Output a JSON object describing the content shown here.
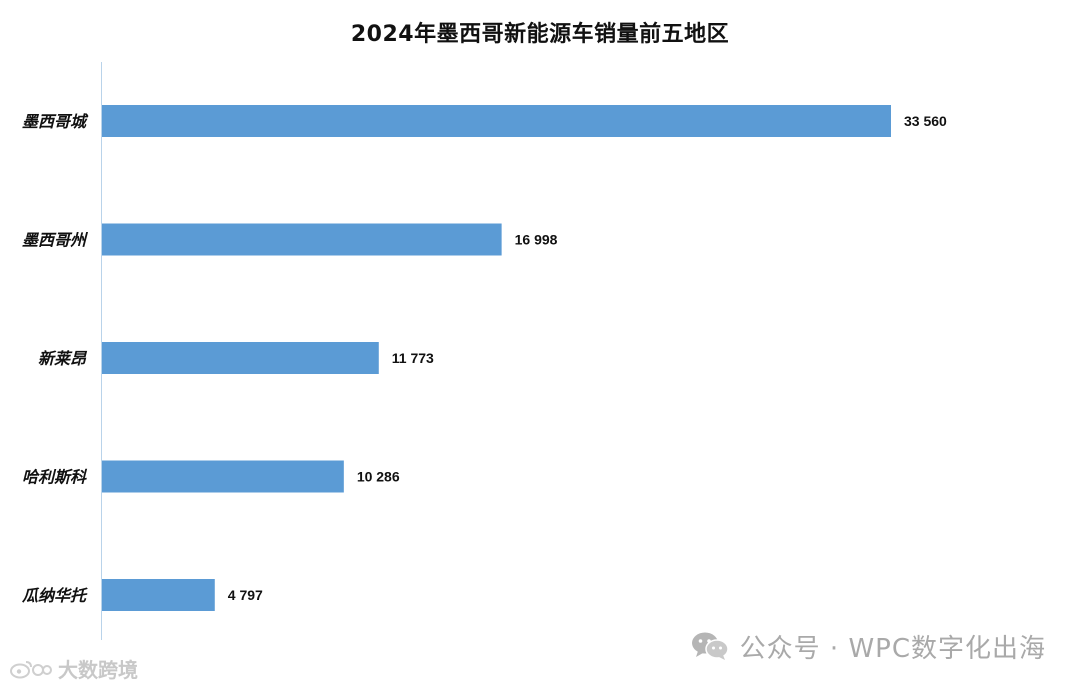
{
  "chart_data": {
    "type": "bar",
    "orientation": "horizontal",
    "title": "2024年墨西哥新能源车销量前五地区",
    "categories": [
      "墨西哥城",
      "墨西哥州",
      "新莱昂",
      "哈利斯科",
      "瓜纳华托"
    ],
    "values": [
      33560,
      16998,
      11773,
      10286,
      4797
    ],
    "value_labels": [
      "33 560",
      "16 998",
      "11 773",
      "10 286",
      "4 797"
    ],
    "xlabel": "",
    "ylabel": "",
    "xlim": [
      0,
      33560
    ],
    "grid": false,
    "legend": "none",
    "bar_color": "#5b9bd5"
  },
  "watermarks": {
    "right_text": "公众号 · WPC数字化出海",
    "left_text": "大数跨境"
  },
  "icons": {
    "wechat": "wechat-icon",
    "weibo": "weibo-icon"
  }
}
